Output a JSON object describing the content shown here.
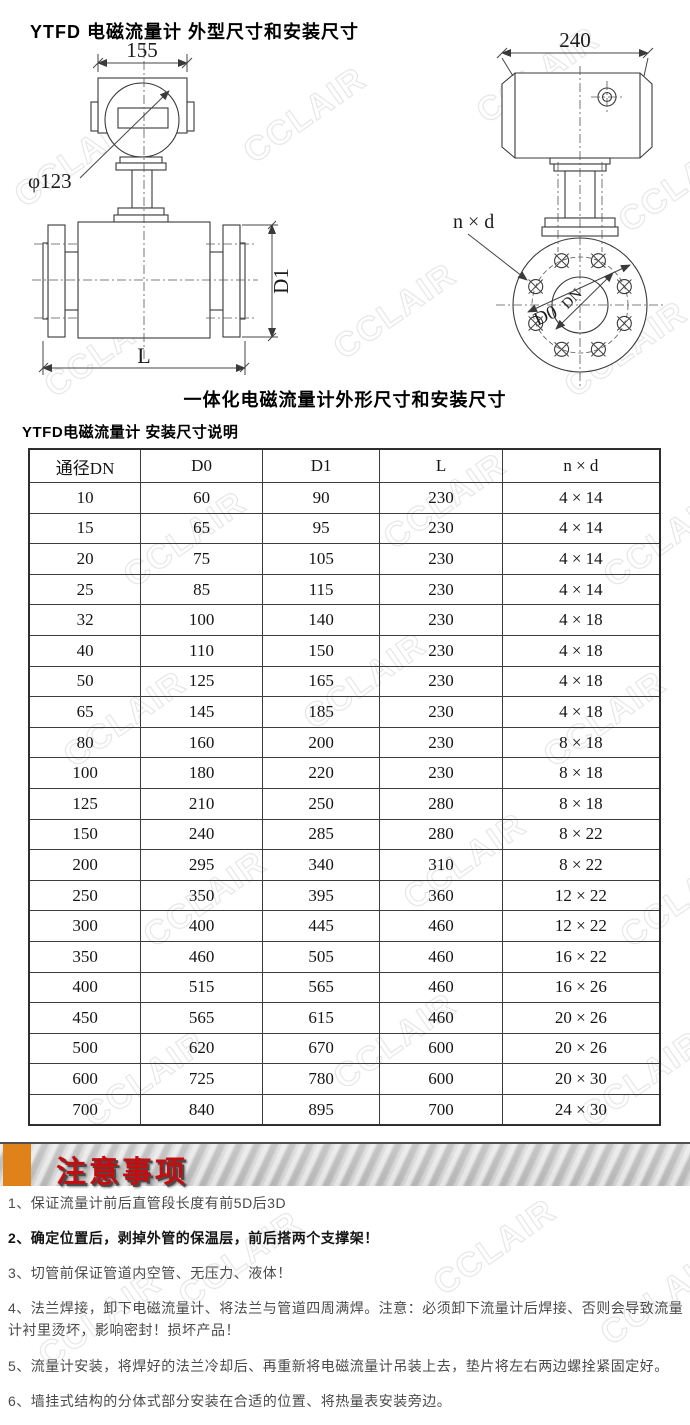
{
  "page": {
    "title": "YTFD 电磁流量计 外型尺寸和安装尺寸",
    "caption": "一体化电磁流量计外形尺寸和安装尺寸",
    "table_title": "YTFD电磁流量计 安装尺寸说明",
    "watermark": "CCLAIR"
  },
  "diagram_front": {
    "dim_head_width": "155",
    "dim_head_diameter": "φ123",
    "dim_flange_diameter": "D1",
    "dim_length": "L"
  },
  "diagram_side": {
    "dim_housing_width": "240",
    "dim_bolt_holes": "n × d",
    "dim_bolt_circle": "D0",
    "dim_bore": "DN"
  },
  "table": {
    "headers": [
      "通径DN",
      "D0",
      "D1",
      "L",
      "n × d"
    ],
    "rows": [
      [
        "10",
        "60",
        "90",
        "230",
        "4 × 14"
      ],
      [
        "15",
        "65",
        "95",
        "230",
        "4 × 14"
      ],
      [
        "20",
        "75",
        "105",
        "230",
        "4 × 14"
      ],
      [
        "25",
        "85",
        "115",
        "230",
        "4 × 14"
      ],
      [
        "32",
        "100",
        "140",
        "230",
        "4 × 18"
      ],
      [
        "40",
        "110",
        "150",
        "230",
        "4 × 18"
      ],
      [
        "50",
        "125",
        "165",
        "230",
        "4 × 18"
      ],
      [
        "65",
        "145",
        "185",
        "230",
        "4 × 18"
      ],
      [
        "80",
        "160",
        "200",
        "230",
        "8 × 18"
      ],
      [
        "100",
        "180",
        "220",
        "230",
        "8 × 18"
      ],
      [
        "125",
        "210",
        "250",
        "280",
        "8 × 18"
      ],
      [
        "150",
        "240",
        "285",
        "280",
        "8 × 22"
      ],
      [
        "200",
        "295",
        "340",
        "310",
        "8 × 22"
      ],
      [
        "250",
        "350",
        "395",
        "360",
        "12 × 22"
      ],
      [
        "300",
        "400",
        "445",
        "460",
        "12 × 22"
      ],
      [
        "350",
        "460",
        "505",
        "460",
        "16 × 22"
      ],
      [
        "400",
        "515",
        "565",
        "460",
        "16 × 26"
      ],
      [
        "450",
        "565",
        "615",
        "460",
        "20 × 26"
      ],
      [
        "500",
        "620",
        "670",
        "600",
        "20 × 26"
      ],
      [
        "600",
        "725",
        "780",
        "600",
        "20 × 30"
      ],
      [
        "700",
        "840",
        "895",
        "700",
        "24 × 30"
      ]
    ]
  },
  "notice": {
    "header": "注意事项",
    "accent_color": "#e0821a",
    "title_color": "#c40d10",
    "items": [
      {
        "text": "1、保证流量计前后直管段长度有前5D后3D",
        "bold": false
      },
      {
        "text": "2、确定位置后，剥掉外管的保温层，前后搭两个支撑架！",
        "bold": true
      },
      {
        "text": "3、切管前保证管道内空管、无压力、液体！",
        "bold": false
      },
      {
        "text": "4、法兰焊接，卸下电磁流量计、将法兰与管道四周满焊。注意：必须卸下流量计后焊接、否则会导致流量计衬里烫坏，影响密封！损坏产品！",
        "bold": false
      },
      {
        "text": "5、流量计安装，将焊好的法兰冷却后、再重新将电磁流量计吊装上去，垫片将左右两边螺拴紧固定好。",
        "bold": false
      },
      {
        "text": "6、墙挂式结构的分体式部分安装在合适的位置、将热量表安装旁边。",
        "bold": false
      }
    ]
  }
}
